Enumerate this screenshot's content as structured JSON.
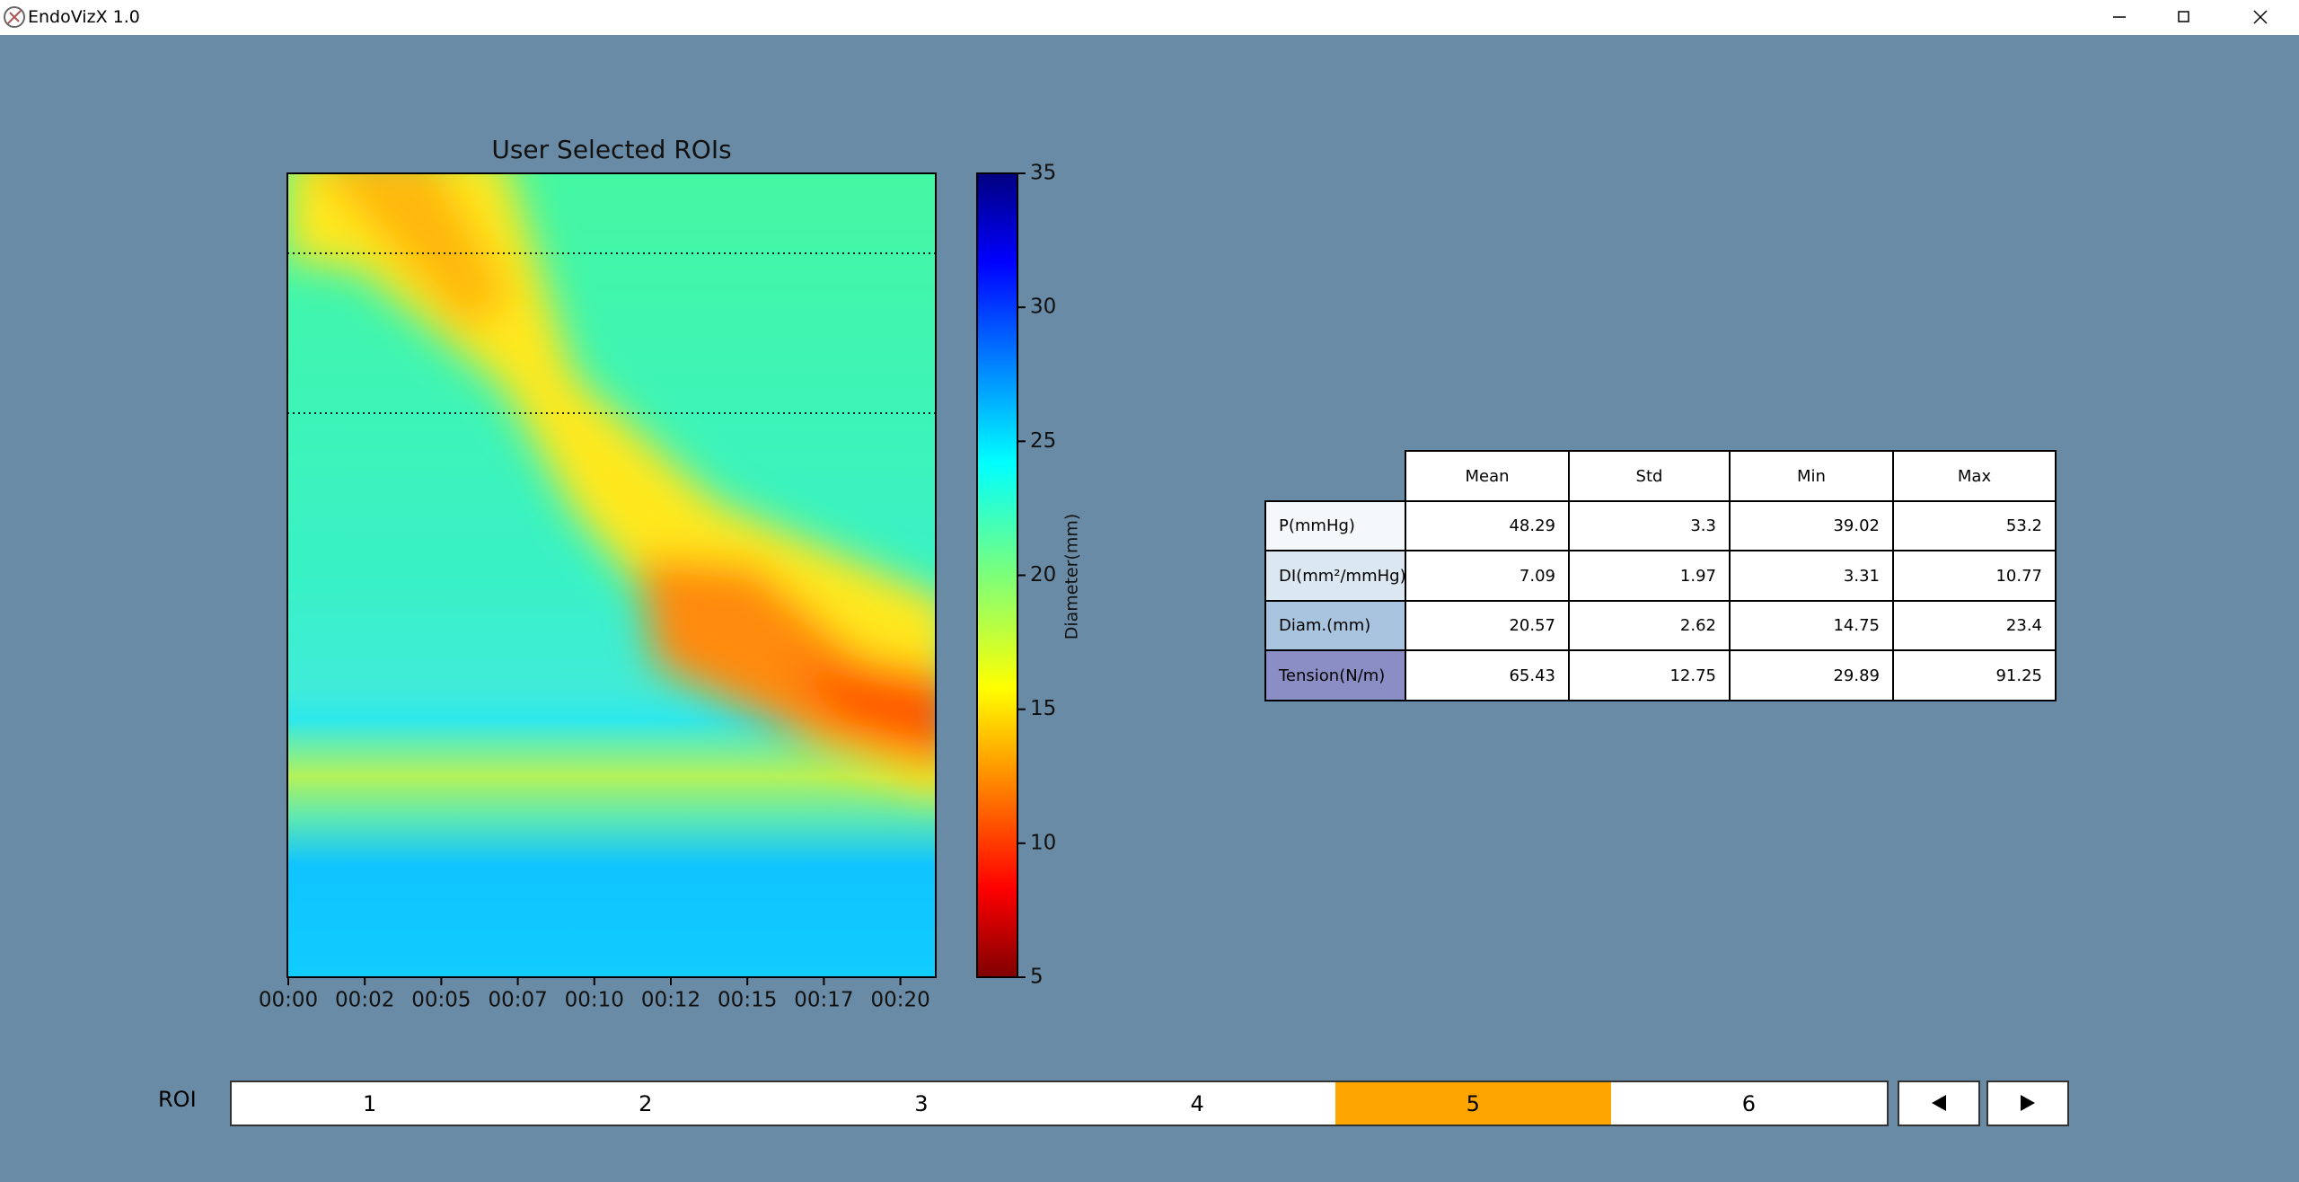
{
  "window": {
    "title": "EndoVizX 1.0"
  },
  "chart_data": {
    "type": "heatmap",
    "title": "User Selected ROIs",
    "categories": [
      "00:00",
      "00:02",
      "00:05",
      "00:07",
      "00:10",
      "00:12",
      "00:15",
      "00:17",
      "00:20"
    ],
    "colorbar": {
      "label": "Diameter(mm)",
      "lim": [
        5,
        35
      ],
      "ticks": [
        5,
        10,
        15,
        20,
        25,
        30,
        35
      ]
    }
  },
  "table": {
    "columns": [
      "Mean",
      "Std",
      "Min",
      "Max"
    ],
    "rows": [
      {
        "label": "P(mmHg)",
        "color": "#f4f8fb",
        "values": [
          48.29,
          3.3,
          39.02,
          53.2
        ]
      },
      {
        "label": "DI(mm²/mmHg)",
        "color": "#dce8f1",
        "values": [
          7.09,
          1.97,
          3.31,
          10.77
        ]
      },
      {
        "label": "Diam.(mm)",
        "color": "#a9c4de",
        "values": [
          20.57,
          2.62,
          14.75,
          23.4
        ]
      },
      {
        "label": "Tension(N/m)",
        "color": "#8b8ec4",
        "values": [
          65.43,
          12.75,
          29.89,
          91.25
        ]
      }
    ]
  },
  "roi": {
    "label": "ROI",
    "options": [
      "1",
      "2",
      "3",
      "4",
      "5",
      "6"
    ],
    "selected": "5"
  }
}
